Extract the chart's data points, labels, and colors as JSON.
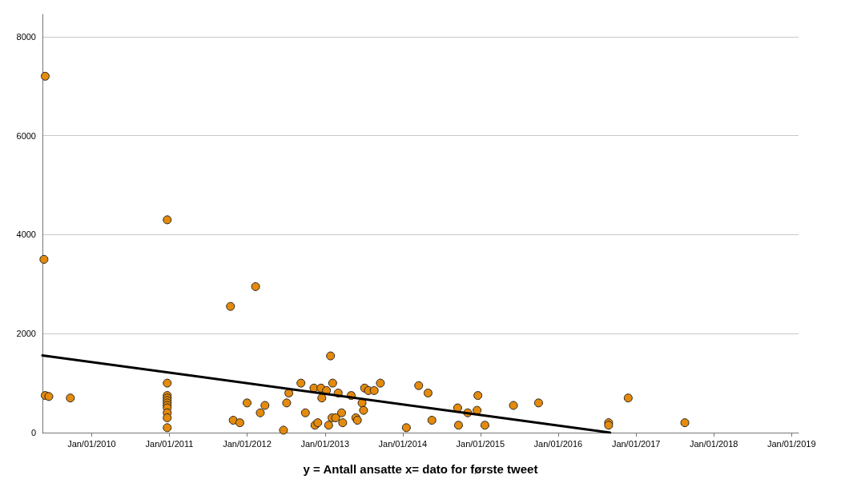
{
  "chart_data": {
    "type": "scatter",
    "xlabel": "y = Antall ansatte x= dato for første tweet",
    "xlim": [
      "2009-05-15",
      "2019-02-03"
    ],
    "xticks": [
      {
        "value": "2010-01-01",
        "label": "Jan/01/2010"
      },
      {
        "value": "2011-01-01",
        "label": "Jan/01/2011"
      },
      {
        "value": "2012-01-01",
        "label": "Jan/01/2012"
      },
      {
        "value": "2013-01-01",
        "label": "Jan/01/2013"
      },
      {
        "value": "2014-01-01",
        "label": "Jan/01/2014"
      },
      {
        "value": "2015-01-01",
        "label": "Jan/01/2015"
      },
      {
        "value": "2016-01-01",
        "label": "Jan/01/2016"
      },
      {
        "value": "2017-01-01",
        "label": "Jan/01/2017"
      },
      {
        "value": "2018-01-01",
        "label": "Jan/01/2018"
      },
      {
        "value": "2019-01-01",
        "label": "Jan/01/2019"
      }
    ],
    "ylim": [
      0,
      8450
    ],
    "yticks": [
      0,
      2000,
      4000,
      6000,
      8000
    ],
    "grid": "y",
    "marker": "circle",
    "series": [
      {
        "color": "#e48a0c",
        "x": [
          "2009-05-28",
          "2009-05-22",
          "2009-05-28",
          "2009-06-14",
          "2009-09-23",
          "2010-12-22",
          "2010-12-22",
          "2010-12-22",
          "2010-12-22",
          "2010-12-22",
          "2010-12-22",
          "2010-12-22",
          "2010-12-22",
          "2010-12-22",
          "2010-12-22",
          "2010-12-22",
          "2011-10-15",
          "2012-02-10",
          "2013-01-27",
          "2012-09-10",
          "2012-07-15",
          "2012-01-01",
          "2012-03-25",
          "2012-03-03",
          "2012-07-05",
          "2011-10-28",
          "2011-11-28",
          "2012-06-20",
          "2012-10-01",
          "2012-11-10",
          "2012-12-13",
          "2013-01-08",
          "2012-12-17",
          "2013-02-06",
          "2013-03-04",
          "2013-05-04",
          "2013-07-06",
          "2013-07-24",
          "2013-08-20",
          "2013-09-18",
          "2013-06-24",
          "2013-07-01",
          "2012-11-15",
          "2012-11-28",
          "2013-01-18",
          "2013-02-03",
          "2013-02-20",
          "2013-03-20",
          "2013-03-25",
          "2013-05-26",
          "2013-06-02",
          "2014-01-18",
          "2014-03-17",
          "2014-04-30",
          "2014-05-18",
          "2014-09-16",
          "2014-09-20",
          "2014-11-02",
          "2014-12-16",
          "2014-12-20",
          "2015-01-22",
          "2015-06-05",
          "2015-10-01",
          "2016-08-25",
          "2016-08-25",
          "2016-11-25",
          "2017-08-18"
        ],
        "values": [
          7200,
          3500,
          750,
          730,
          700,
          4300,
          1000,
          750,
          700,
          650,
          600,
          550,
          500,
          400,
          300,
          100,
          2550,
          2950,
          1550,
          1000,
          800,
          600,
          550,
          400,
          600,
          250,
          200,
          50,
          400,
          900,
          900,
          850,
          700,
          1000,
          800,
          750,
          900,
          850,
          850,
          1000,
          600,
          450,
          150,
          200,
          150,
          300,
          300,
          400,
          200,
          300,
          250,
          100,
          950,
          800,
          250,
          500,
          150,
          400,
          450,
          750,
          150,
          550,
          600,
          200,
          150,
          700,
          200
        ]
      },
      {
        "type": "line",
        "color": "#000000",
        "marker": "none",
        "x": [
          "2009-05-15",
          "2016-09-01"
        ],
        "values": [
          1560,
          0
        ]
      }
    ]
  }
}
